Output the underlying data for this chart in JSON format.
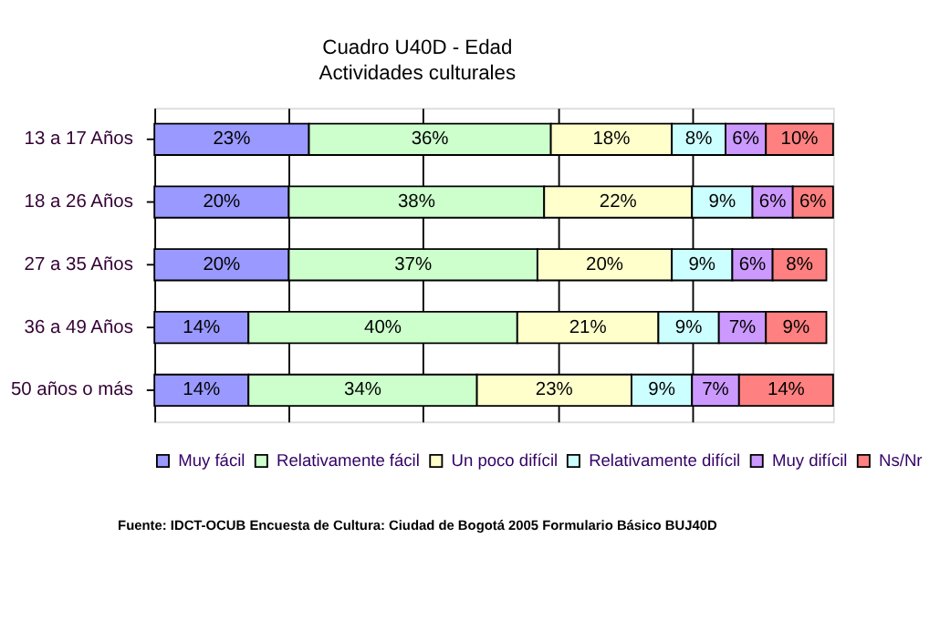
{
  "chart_data": {
    "type": "bar",
    "orientation": "horizontal",
    "stacked": true,
    "title": "Cuadro U40D - Edad",
    "subtitle": "Actividades culturales",
    "categories": [
      "13 a 17 Años",
      "18 a 26 Años",
      "27 a 35 Años",
      "36 a 49 Años",
      "50 años o más"
    ],
    "series": [
      {
        "name": "Muy fácil",
        "color": "#9999ff",
        "values": [
          23,
          20,
          20,
          14,
          14
        ],
        "value_labels": [
          "23%",
          "20%",
          "20%",
          "14%",
          "14%"
        ]
      },
      {
        "name": "Relativamente fácil",
        "color": "#ccffcc",
        "values": [
          36,
          38,
          37,
          40,
          34
        ],
        "value_labels": [
          "36%",
          "38%",
          "37%",
          "40%",
          "34%"
        ]
      },
      {
        "name": "Un poco difícil",
        "color": "#ffffcc",
        "values": [
          18,
          22,
          20,
          21,
          23
        ],
        "value_labels": [
          "18%",
          "22%",
          "20%",
          "21%",
          "23%"
        ]
      },
      {
        "name": "Relativamente difícil",
        "color": "#ccffff",
        "values": [
          8,
          9,
          9,
          9,
          9
        ],
        "value_labels": [
          "8%",
          "9%",
          "9%",
          "9%",
          "9%"
        ]
      },
      {
        "name": "Muy difícil",
        "color": "#cc99ff",
        "values": [
          6,
          6,
          6,
          7,
          7
        ],
        "value_labels": [
          "6%",
          "6%",
          "6%",
          "7%",
          "7%"
        ]
      },
      {
        "name": "Ns/Nr",
        "color": "#ff8080",
        "values": [
          10,
          6,
          8,
          9,
          14
        ],
        "value_labels": [
          "10%",
          "6%",
          "8%",
          "9%",
          "14%"
        ]
      }
    ],
    "xlim": [
      0,
      101
    ],
    "xticks": [
      {
        "value": 20,
        "label": null
      },
      {
        "value": 40,
        "label": null
      },
      {
        "value": 60,
        "label": null
      },
      {
        "value": 80,
        "label": null
      }
    ],
    "tick_labels": "y",
    "grid": "x",
    "legend": "bottom",
    "annotations": [
      "Fuente: IDCT-OCUB Encuesta de Cultura: Ciudad de Bogotá 2005 Formulario Básico BUJ40D"
    ]
  }
}
